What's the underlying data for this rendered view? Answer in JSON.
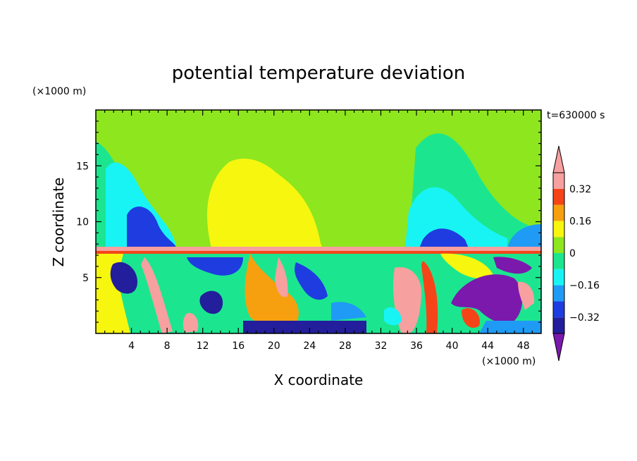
{
  "chart_data": {
    "type": "heatmap",
    "title": "potential temperature deviation",
    "xlabel": "X coordinate",
    "ylabel": "Z coordinate",
    "x_unit": "(×1000 m)",
    "y_unit": "(×1000 m)",
    "time_label": "t=630000 s",
    "xlim": [
      0,
      50
    ],
    "ylim": [
      0,
      20
    ],
    "x_ticks": [
      4,
      8,
      12,
      16,
      20,
      24,
      28,
      32,
      36,
      40,
      44,
      48
    ],
    "y_ticks": [
      5,
      10,
      15
    ],
    "colorbar": {
      "levels": [
        -0.4,
        -0.32,
        -0.24,
        -0.16,
        -0.08,
        0,
        0.08,
        0.16,
        0.24,
        0.32,
        0.4
      ],
      "tick_labels": [
        "0.32",
        "0.16",
        "0",
        "−0.16",
        "−0.32"
      ],
      "tick_values": [
        0.32,
        0.16,
        0,
        -0.16,
        -0.32
      ],
      "colors": [
        "#7b19ad",
        "#231e9b",
        "#1f3ce0",
        "#1f9bf5",
        "#18f4f4",
        "#1be68f",
        "#8ee61e",
        "#f6f60f",
        "#f6a00f",
        "#f54518",
        "#f6a0a0",
        "#f6a0a0"
      ]
    }
  }
}
